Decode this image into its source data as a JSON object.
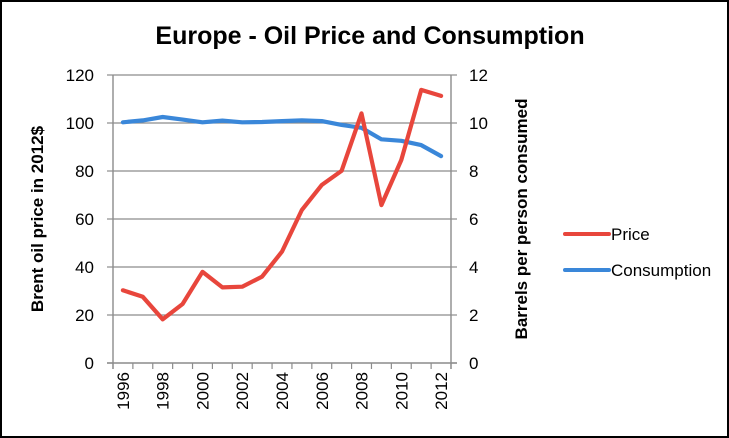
{
  "chart_data": {
    "type": "line",
    "title": "Europe - Oil Price and Consumption",
    "xlabel": "",
    "ylabel": "Brent oil price in 2012$",
    "y2label": "Barrels per person consumed",
    "categories": [
      "1996",
      "1997",
      "1998",
      "1999",
      "2000",
      "2001",
      "2002",
      "2003",
      "2004",
      "2005",
      "2006",
      "2007",
      "2008",
      "2009",
      "2010",
      "2011",
      "2012"
    ],
    "x_tick_labels": [
      "1996",
      "1998",
      "2000",
      "2002",
      "2004",
      "2006",
      "2008",
      "2010",
      "2012"
    ],
    "ylim": [
      0,
      120
    ],
    "y_ticks": [
      "0",
      "20",
      "40",
      "60",
      "80",
      "100",
      "120"
    ],
    "y2lim": [
      0,
      12
    ],
    "y2_ticks": [
      "0",
      "2",
      "4",
      "6",
      "8",
      "10",
      "12"
    ],
    "grid": true,
    "legend_position": "right",
    "series": [
      {
        "name": "Price",
        "axis": "left",
        "color": "#e8463c",
        "values": [
          30.3,
          27.6,
          18.2,
          24.6,
          38.0,
          31.5,
          31.8,
          36.0,
          46.4,
          63.8,
          74.2,
          80.1,
          104.0,
          65.8,
          84.6,
          113.8,
          111.3
        ]
      },
      {
        "name": "Consumption",
        "axis": "right",
        "color": "#3a87d9",
        "values": [
          10.03,
          10.11,
          10.25,
          10.14,
          10.03,
          10.1,
          10.03,
          10.04,
          10.08,
          10.11,
          10.08,
          9.92,
          9.8,
          9.32,
          9.26,
          9.08,
          8.62
        ]
      }
    ]
  }
}
